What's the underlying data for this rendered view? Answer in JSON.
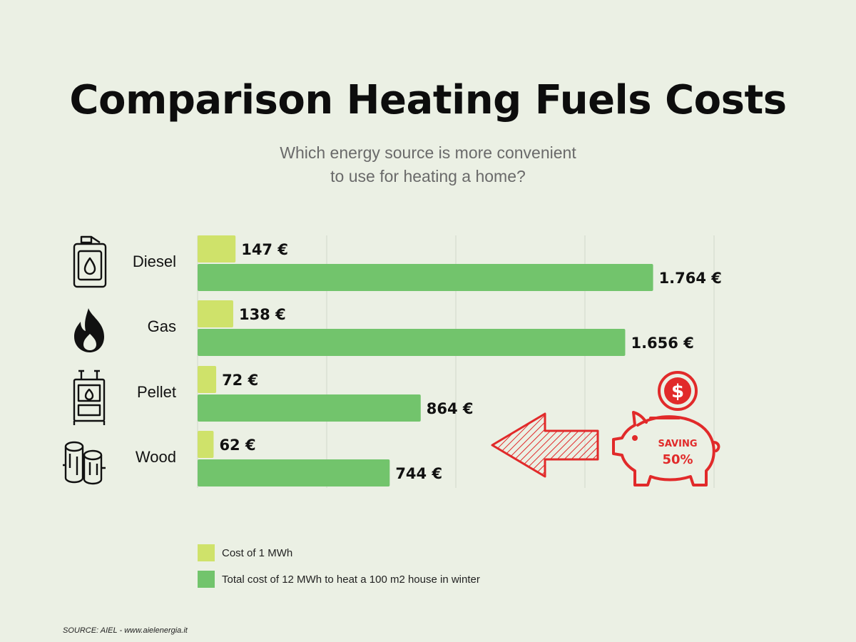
{
  "title": "Comparison Heating Fuels Costs",
  "subtitle_lines": [
    "Which energy source is more convenient",
    "to use for heating a home?"
  ],
  "source": "SOURCE: AIEL - www.aielenergia.it",
  "colors": {
    "per_mwh": "#cfe26a",
    "total": "#72c46c",
    "accent": "#e12a2a",
    "grid": "#d6dbcf"
  },
  "chart_data": {
    "type": "bar",
    "orientation": "horizontal",
    "title": "Comparison Heating Fuels Costs",
    "categories": [
      "Diesel",
      "Gas",
      "Pellet",
      "Wood"
    ],
    "category_icons": [
      "fuel-canister-icon",
      "flame-icon",
      "pellet-stove-icon",
      "firewood-logs-icon"
    ],
    "series": [
      {
        "name": "Cost of 1 MWh",
        "values": [
          147,
          138,
          72,
          62
        ],
        "labels": [
          "147 €",
          "138 €",
          "72 €",
          "62 €"
        ]
      },
      {
        "name": "Total cost of 12 MWh to heat a 100 m2 house in winter",
        "values": [
          1764,
          1656,
          864,
          744
        ],
        "labels": [
          "1.764 €",
          "1.656 €",
          "864 €",
          "744 €"
        ]
      }
    ],
    "xlim": [
      0,
      2000
    ],
    "grid": true,
    "legend_position": "bottom-left"
  },
  "annotation": {
    "line1": "SAVING",
    "line2": "50%",
    "icons": [
      "left-arrow-icon",
      "piggy-bank-icon",
      "dollar-coin-icon"
    ]
  }
}
